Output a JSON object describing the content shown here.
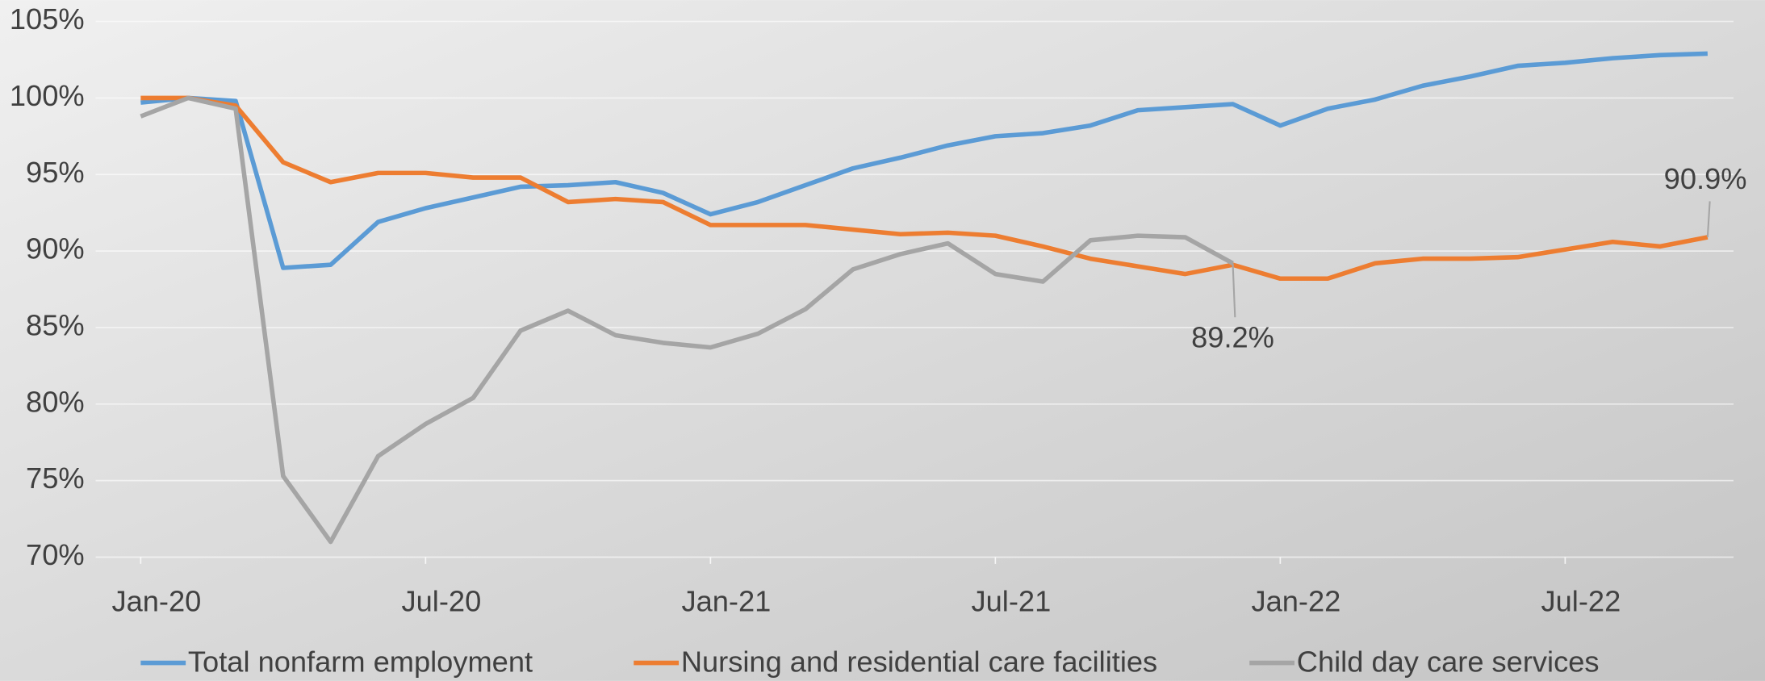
{
  "chart_data": {
    "type": "line",
    "categories": [
      "Jan-20",
      null,
      null,
      null,
      null,
      null,
      "Jul-20",
      null,
      null,
      null,
      null,
      null,
      "Jan-21",
      null,
      null,
      null,
      null,
      null,
      "Jul-21",
      null,
      null,
      null,
      null,
      null,
      "Jan-22",
      null,
      null,
      null,
      null,
      null,
      "Jul-22",
      null,
      null,
      null
    ],
    "series": [
      {
        "name": "Total nonfarm employment",
        "color": "#5b9bd5",
        "values": [
          99.7,
          100,
          99.8,
          88.9,
          89.1,
          91.9,
          92.8,
          93.5,
          94.2,
          94.3,
          94.5,
          93.8,
          92.4,
          93.2,
          94.3,
          95.4,
          96.1,
          96.9,
          97.5,
          97.7,
          98.2,
          99.2,
          99.4,
          99.6,
          98.2,
          99.3,
          99.9,
          100.8,
          101.4,
          102.1,
          102.3,
          102.6,
          102.8,
          102.9
        ]
      },
      {
        "name": "Nursing and residential care facilities",
        "color": "#ed7d31",
        "values": [
          100,
          100,
          99.5,
          95.8,
          94.5,
          95.1,
          95.1,
          94.8,
          94.8,
          93.2,
          93.4,
          93.2,
          91.7,
          91.7,
          91.7,
          91.4,
          91.1,
          91.2,
          91.0,
          90.3,
          89.5,
          89.0,
          88.5,
          89.1,
          88.2,
          88.2,
          89.2,
          89.5,
          89.5,
          89.6,
          90.1,
          90.6,
          90.3,
          90.9
        ],
        "value_labels": [
          null,
          null,
          null,
          null,
          null,
          null,
          null,
          null,
          null,
          null,
          null,
          null,
          null,
          null,
          null,
          null,
          null,
          null,
          null,
          null,
          null,
          null,
          null,
          null,
          null,
          null,
          null,
          null,
          null,
          null,
          null,
          null,
          null,
          "90.9%"
        ]
      },
      {
        "name": "Child day care services",
        "color": "#a5a5a5",
        "values": [
          98.8,
          100,
          99.3,
          75.3,
          71.0,
          76.6,
          78.7,
          80.4,
          84.8,
          86.1,
          84.5,
          84.0,
          83.7,
          84.6,
          86.2,
          88.8,
          89.8,
          90.5,
          88.5,
          88.0,
          90.7,
          91.0,
          90.9,
          89.2,
          null,
          null,
          null,
          null,
          null,
          null,
          null,
          null,
          null,
          null
        ],
        "value_labels": [
          null,
          null,
          null,
          null,
          null,
          null,
          null,
          null,
          null,
          null,
          null,
          null,
          null,
          null,
          null,
          null,
          null,
          null,
          null,
          null,
          null,
          null,
          null,
          "89.2%",
          null,
          null,
          null,
          null,
          null,
          null,
          null,
          null,
          null,
          null
        ]
      }
    ],
    "ylim": [
      70,
      105
    ],
    "yticks": [
      {
        "value": 70,
        "label": "70%"
      },
      {
        "value": 75,
        "label": "75%"
      },
      {
        "value": 80,
        "label": "80%"
      },
      {
        "value": 85,
        "label": "85%"
      },
      {
        "value": 90,
        "label": "90%"
      },
      {
        "value": 95,
        "label": "95%"
      },
      {
        "value": 100,
        "label": "100%"
      },
      {
        "value": 105,
        "label": "105%"
      }
    ],
    "grid": true,
    "legend": "bottom"
  }
}
